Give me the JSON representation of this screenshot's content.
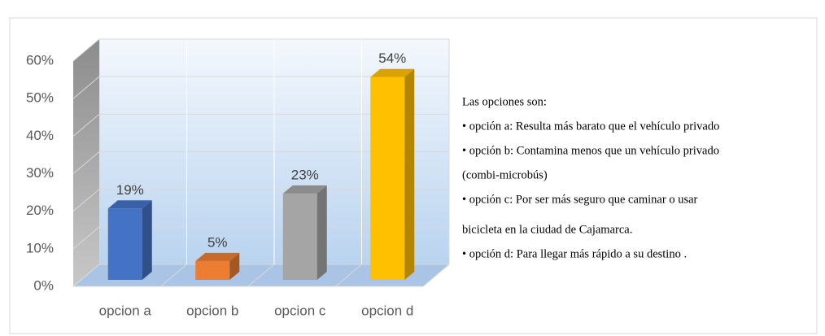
{
  "chart_data": {
    "type": "bar3d",
    "categories": [
      "opcion a",
      "opcion b",
      "opcion c",
      "opcion d"
    ],
    "values": [
      19,
      5,
      23,
      54
    ],
    "value_labels": [
      "19%",
      "5%",
      "23%",
      "54%"
    ],
    "colors": [
      "#4472c4",
      "#ed7d31",
      "#a5a5a5",
      "#ffc000"
    ],
    "ylim": [
      0,
      60
    ],
    "yticks": [
      {
        "value": 0,
        "label": "0%"
      },
      {
        "value": 10,
        "label": "10%"
      },
      {
        "value": 20,
        "label": "20%"
      },
      {
        "value": 30,
        "label": "30%"
      },
      {
        "value": 40,
        "label": "40%"
      },
      {
        "value": 50,
        "label": "50%"
      },
      {
        "value": 60,
        "label": "60%"
      }
    ],
    "grid": true,
    "annotations": [
      "Las opciones son:",
      "• opción a: Resulta más barato que el vehículo privado",
      "• opción b: Contamina menos que un vehículo privado",
      "(combi-microbús)",
      "• opción c: Por ser más seguro que caminar o usar",
      "bicicleta en la ciudad de Cajamarca.",
      "• opción d: Para llegar más rápido a su destino ."
    ]
  }
}
